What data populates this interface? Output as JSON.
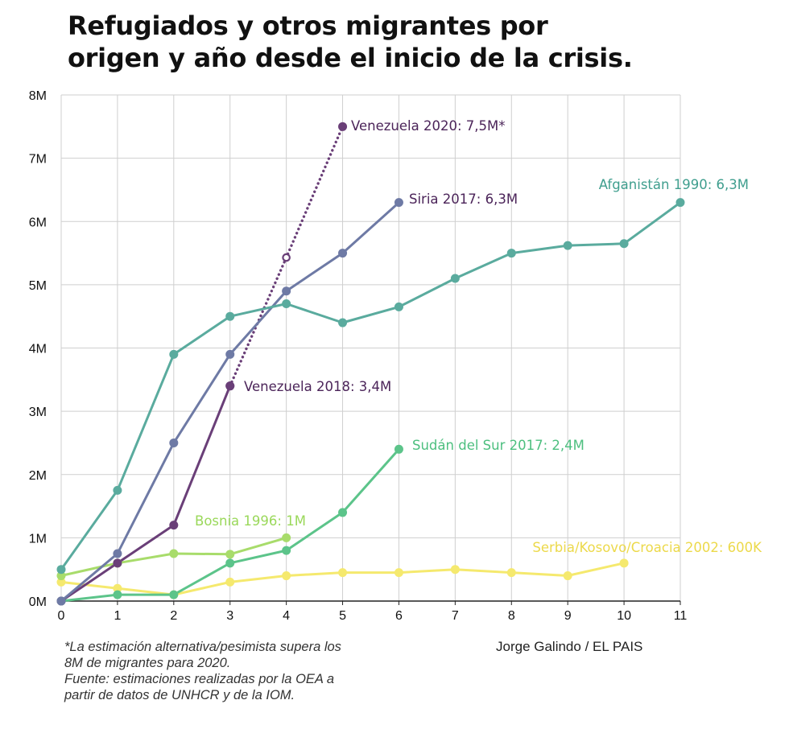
{
  "title": {
    "line1": "Refugiados y otros migrantes por",
    "line2": "origen y año desde el inicio de la crisis."
  },
  "notes": {
    "line1": "*La estimación alternativa/pesimista supera los",
    "line2": "8M de migrantes para 2020.",
    "line3": "Fuente: estimaciones realizadas por la OEA a",
    "line4": "partir de datos de UNHCR y de la IOM."
  },
  "credit": "Jorge Galindo / EL PAIS",
  "chart_data": {
    "type": "line",
    "title": "Refugiados y otros migrantes por origen y año desde el inicio de la crisis.",
    "xlabel": "",
    "ylabel": "",
    "xlim": [
      0,
      11
    ],
    "ylim": [
      0,
      8
    ],
    "x_ticks": [
      "0",
      "1",
      "2",
      "3",
      "4",
      "5",
      "6",
      "7",
      "8",
      "9",
      "10",
      "11"
    ],
    "y_ticks": [
      {
        "value": 0,
        "label": "0M"
      },
      {
        "value": 1,
        "label": "1M"
      },
      {
        "value": 2,
        "label": "2M"
      },
      {
        "value": 3,
        "label": "3M"
      },
      {
        "value": 4,
        "label": "4M"
      },
      {
        "value": 5,
        "label": "5M"
      },
      {
        "value": 6,
        "label": "6M"
      },
      {
        "value": 7,
        "label": "7M"
      },
      {
        "value": 8,
        "label": "8M"
      }
    ],
    "grid": true,
    "series": [
      {
        "name": "afganistan-1990",
        "color": "#5aab9e",
        "x": [
          0,
          1,
          2,
          3,
          4,
          5,
          6,
          7,
          8,
          9,
          10,
          11
        ],
        "values": [
          0.5,
          1.75,
          3.9,
          4.5,
          4.7,
          4.4,
          4.65,
          5.1,
          5.5,
          5.62,
          5.65,
          6.3
        ],
        "label": "Afganistán 1990: 6,3M"
      },
      {
        "name": "siria-2017",
        "color": "#6e7aa5",
        "x": [
          0,
          1,
          2,
          3,
          4,
          5,
          6
        ],
        "values": [
          0,
          0.75,
          2.5,
          3.9,
          4.9,
          5.5,
          6.3
        ],
        "label": "Siria 2017: 6,3M"
      },
      {
        "name": "venezuela-2018",
        "color": "#6a3f78",
        "x": [
          0,
          1,
          2,
          3
        ],
        "values": [
          0,
          0.6,
          1.2,
          3.4
        ],
        "label": "Venezuela 2018: 3,4M"
      },
      {
        "name": "venezuela-2020",
        "color": "#6a3f78",
        "dashed": true,
        "open_markers": [
          1
        ],
        "x": [
          3,
          4,
          5
        ],
        "values": [
          3.4,
          5.43,
          7.5
        ],
        "label": "Venezuela 2020: 7,5M*"
      },
      {
        "name": "sudan-del-sur-2017",
        "color": "#5cc48a",
        "x": [
          0,
          1,
          2,
          3,
          4,
          5,
          6
        ],
        "values": [
          0,
          0.1,
          0.1,
          0.6,
          0.8,
          1.4,
          2.4
        ],
        "label": "Sudán del Sur 2017: 2,4M"
      },
      {
        "name": "bosnia-1996",
        "color": "#a8dc6b",
        "x": [
          0,
          1,
          2,
          3,
          4
        ],
        "values": [
          0.4,
          0.6,
          0.75,
          0.74,
          1.0
        ],
        "label": "Bosnia 1996: 1M"
      },
      {
        "name": "serbia-kosovo-croacia-2002",
        "color": "#f5e96e",
        "x": [
          0,
          1,
          2,
          3,
          4,
          5,
          6,
          7,
          8,
          9,
          10
        ],
        "values": [
          0.3,
          0.2,
          0.1,
          0.3,
          0.4,
          0.45,
          0.45,
          0.5,
          0.45,
          0.4,
          0.6
        ],
        "label": "Serbia/Kosovo/Croacia 2002: 600K"
      }
    ],
    "annotation_colors": {
      "afganistan-1990": "#3f9e8e",
      "siria-2017": "#4b2459",
      "venezuela-2018": "#4b2459",
      "venezuela-2020": "#4b2459",
      "sudan-del-sur-2017": "#4dbf7f",
      "bosnia-1996": "#9ad85a",
      "serbia-kosovo-croacia-2002": "#ecd94a"
    }
  }
}
